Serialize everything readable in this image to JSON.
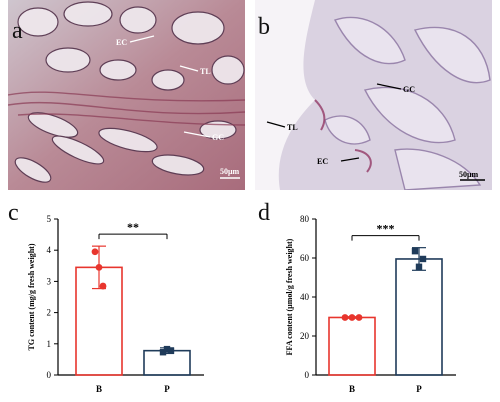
{
  "panels": {
    "a": {
      "letter": "a",
      "labels": {
        "ec": "EC",
        "tl": "TL",
        "gc": "GC"
      },
      "scalebar": "50μm"
    },
    "b": {
      "letter": "b",
      "labels": {
        "gc": "GC",
        "tl": "TL",
        "ec": "EC"
      },
      "scalebar": "50μm"
    },
    "c": {
      "letter": "c"
    },
    "d": {
      "letter": "d"
    }
  },
  "chart_data": [
    {
      "panel": "c",
      "type": "bar",
      "categories": [
        "B",
        "P"
      ],
      "values": [
        3.45,
        0.78
      ],
      "errors": [
        0.68,
        0.09
      ],
      "points": [
        [
          3.95,
          3.45,
          2.85
        ],
        [
          0.73,
          0.83,
          0.78
        ]
      ],
      "point_markers": [
        "circle",
        "square"
      ],
      "colors": {
        "B": "#e8352d",
        "P": "#1f3b5a"
      },
      "ylabel": "TG content (mg/g fresh weight)",
      "ylim": [
        0,
        5
      ],
      "yticks": [
        0,
        1,
        2,
        3,
        4,
        5
      ],
      "significance": "**"
    },
    {
      "panel": "d",
      "type": "bar",
      "categories": [
        "B",
        "P"
      ],
      "values": [
        29.5,
        59.5
      ],
      "errors": [
        0.4,
        5.8
      ],
      "points": [
        [
          29.5,
          29.5,
          29.5
        ],
        [
          63.5,
          55.5,
          59.5
        ]
      ],
      "point_markers": [
        "circle",
        "square"
      ],
      "colors": {
        "B": "#e8352d",
        "P": "#1f3b5a"
      },
      "ylabel": "FFA content (μmol/g fresh weight)",
      "ylim": [
        0,
        80
      ],
      "yticks": [
        0,
        20,
        40,
        60,
        80
      ],
      "significance": "***"
    }
  ]
}
